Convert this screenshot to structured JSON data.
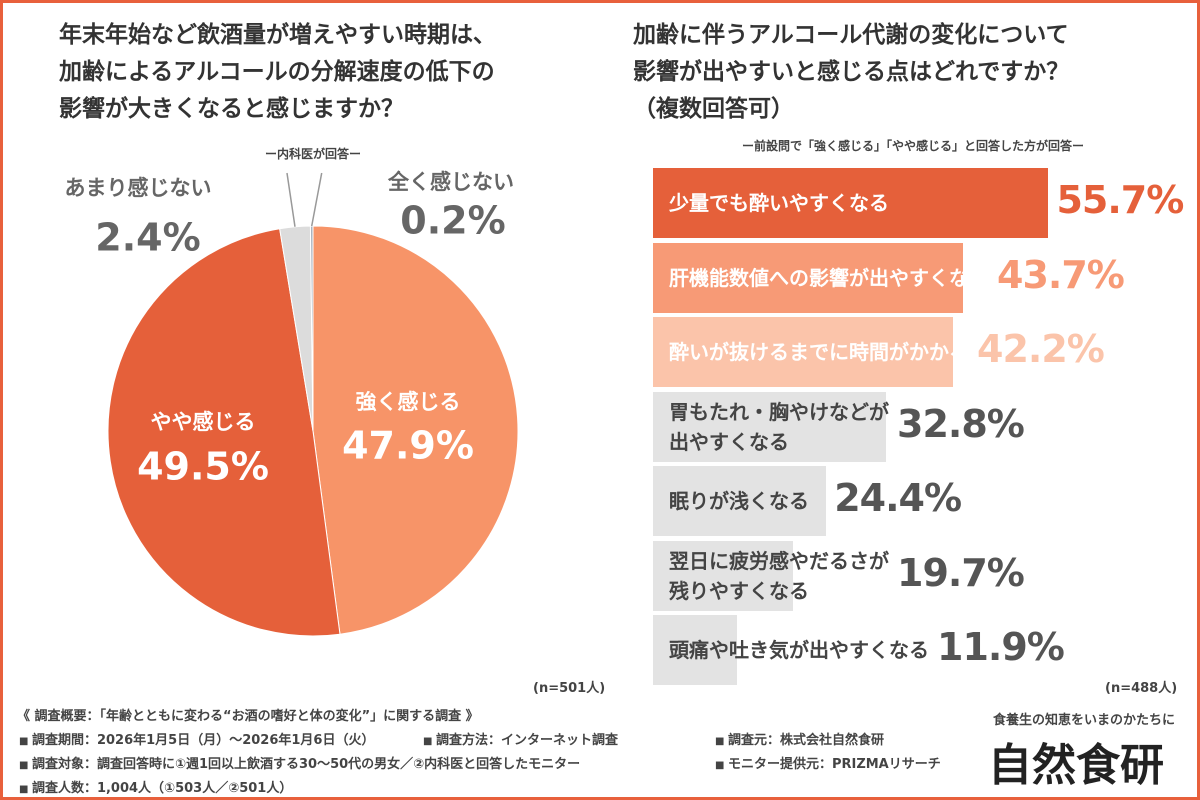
{
  "chart_data": [
    {
      "type": "pie",
      "title": "年末年始など飲酒量が増えやすい時期は、\n加齢によるアルコールの分解速度の低下の\n影響が大きくなると感じますか？",
      "subtitle": "ー内科医が回答ー",
      "note": "(n=501人)",
      "categories": [
        "強く感じる",
        "やや感じる",
        "あまり感じない",
        "全く感じない"
      ],
      "values": [
        47.9,
        49.5,
        2.4,
        0.2
      ],
      "value_labels": [
        "47.9%",
        "49.5%",
        "2.4%",
        "0.2%"
      ],
      "colors": [
        "#f79468",
        "#e5603a",
        "#dcdcdc",
        "#a9b3bf"
      ]
    },
    {
      "type": "bar",
      "title": "加齢に伴うアルコール代謝の変化について\n影響が出やすいと感じる点はどれですか？\n（複数回答可）",
      "subtitle": "ー前設問で「強く感じる」「やや感じる」と回答した方が回答ー",
      "note": "(n=488人)",
      "categories": [
        "少量でも酔いやすくなる",
        "肝機能数値への影響が出やすくなる",
        "酔いが抜けるまでに時間がかかる",
        "胃もたれ・胸やけなどが\n出やすくなる",
        "眠りが浅くなる",
        "翌日に疲労感やだるさが\n残りやすくなる",
        "頭痛や吐き気が出やすくなる"
      ],
      "values": [
        55.7,
        43.7,
        42.2,
        32.8,
        24.4,
        19.7,
        11.9
      ],
      "value_labels": [
        "55.7%",
        "43.7%",
        "42.2%",
        "32.8%",
        "24.4%",
        "19.7%",
        "11.9%"
      ],
      "colors": [
        "#e5603a",
        "#f79a76",
        "#fbc4aa",
        "#e3e3e3",
        "#e3e3e3",
        "#e3e3e3",
        "#e3e3e3"
      ]
    }
  ],
  "footer": {
    "heading": "《 調査概要：「年齢とともに変わる“お酒の嗜好と体の変化”」に関する調査 》",
    "items": [
      "調査期間：2026年1月5日（月）～2026年1月6日（火）",
      "調査方法：インターネット調査",
      "調査元：株式会社自然食研",
      "調査対象：調査回答時に①週1回以上飲酒する30〜50代の男女／②内科医と回答したモニター",
      "モニター提供元：PRIZMAリサーチ",
      "調査人数：1,004人（①503人／②501人）"
    ],
    "tagline": "食養生の知恵をいまのかたちに",
    "logo": "自然食研"
  }
}
